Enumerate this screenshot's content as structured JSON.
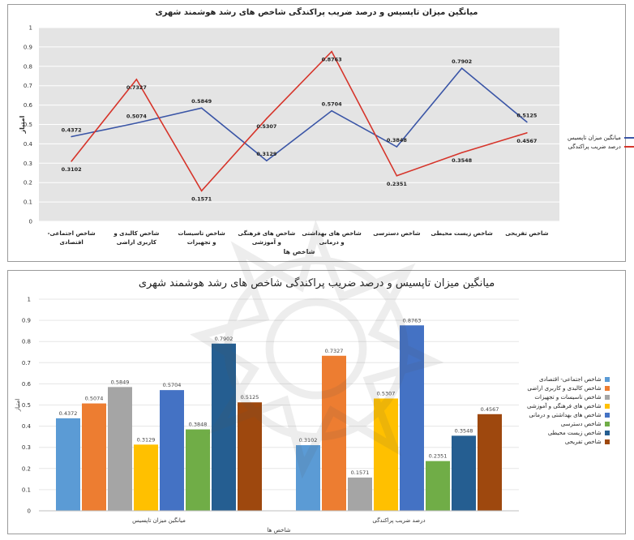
{
  "chart_data": [
    {
      "type": "line",
      "title": "میانگین میزان تاپسیس و درصد ضریب پراکندگی شاخص های رشد هوشمند شهری",
      "xlabel": "شاخص ها",
      "ylabel": "امتیاز",
      "ylim": [
        0,
        1
      ],
      "yticks": [
        "0",
        "0.1",
        "0.2",
        "0.3",
        "0.4",
        "0.5",
        "0.6",
        "0.7",
        "0.8",
        "0.9",
        "1"
      ],
      "categories": [
        "شاخص اجتماعی- اقتصادی",
        "شاخص کالبدی و کاربری اراضی",
        "شاخص تاسیسات و تجهیزات",
        "شاخص های فرهنگی و آموزشی",
        "شاخص های بهداشتی و درمانی",
        "شاخص دسترسی",
        "شاخص زیست محیطی",
        "شاخص تفریحی"
      ],
      "series": [
        {
          "name": "میانگین میزان تاپسیس",
          "color": "#3a55a6",
          "values": [
            0.4372,
            0.5074,
            0.5849,
            0.3129,
            0.5704,
            0.3848,
            0.7902,
            0.5125
          ]
        },
        {
          "name": "درصد ضریب پراکندگی",
          "color": "#d6342a",
          "values": [
            0.3102,
            0.7327,
            0.1571,
            0.5307,
            0.8763,
            0.2351,
            0.3548,
            0.4567
          ]
        }
      ],
      "legend": "right",
      "grid": true
    },
    {
      "type": "bar",
      "title": "میانگین میزان تاپسیس و درصد ضریب پراکندگی شاخص های رشد هوشمند شهری",
      "xlabel": "شاخص ها",
      "ylabel": "امتیاز",
      "ylim": [
        0,
        1
      ],
      "yticks": [
        "0",
        "0.1",
        "0.2",
        "0.3",
        "0.4",
        "0.5",
        "0.6",
        "0.7",
        "0.8",
        "0.9",
        "1"
      ],
      "groups": [
        "میانگین میزان تاپسیس",
        "درصد ضریب پراکندگی"
      ],
      "series": [
        {
          "name": "شاخص اجتماعی- اقتصادی",
          "color": "#5b9bd5",
          "values": [
            0.4372,
            0.3102
          ]
        },
        {
          "name": "شاخص کالبدی و کاربری اراضی",
          "color": "#ed7d31",
          "values": [
            0.5074,
            0.7327
          ]
        },
        {
          "name": "شاخص تاسیسات و تجهیزات",
          "color": "#a5a5a5",
          "values": [
            0.5849,
            0.1571
          ]
        },
        {
          "name": "شاخص های فرهنگی و آموزشی",
          "color": "#ffc000",
          "values": [
            0.3129,
            0.5307
          ]
        },
        {
          "name": "شاخص های بهداشتی و درمانی",
          "color": "#4472c4",
          "values": [
            0.5704,
            0.8763
          ]
        },
        {
          "name": "شاخص دسترسی",
          "color": "#70ad47",
          "values": [
            0.3848,
            0.2351
          ]
        },
        {
          "name": "شاخص زیست محیطی",
          "color": "#255e91",
          "values": [
            0.7902,
            0.3548
          ]
        },
        {
          "name": "شاخص تفریحی",
          "color": "#9e480e",
          "values": [
            0.5125,
            0.4567
          ]
        }
      ],
      "legend": "right",
      "grid": true
    }
  ]
}
